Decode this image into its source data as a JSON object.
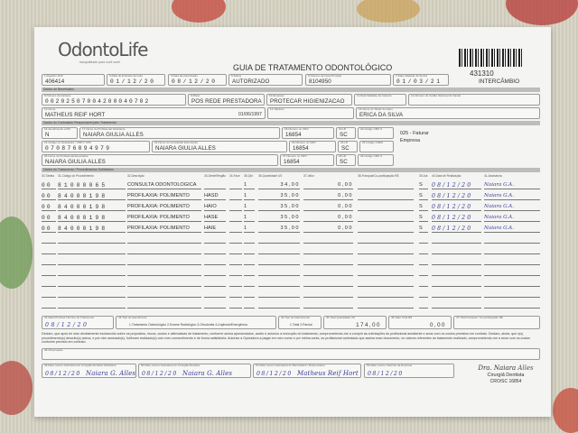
{
  "header": {
    "logo": "OdontoLife",
    "logo_tagline": "tranquilidade para você sorrir",
    "title": "GUIA DE TRATAMENTO ODONTOLÓGICO",
    "guide_number": "431310",
    "guide_type": "INTERCÂMBIO"
  },
  "fields": {
    "registro_ans": {
      "label": "1-Registro ANS",
      "value": "406414"
    },
    "data_emissao": {
      "label": "3-Data de Emissão da Guia",
      "value": "01/12/20"
    },
    "data_autorizacao": {
      "label": "4-Data da Autorização",
      "value": "08/12/20"
    },
    "status": {
      "label": "5-Status",
      "value": "AUTORIZADO"
    },
    "guia_principal": {
      "label": "6-Número da Guia Principal",
      "value": "8104950"
    },
    "validade_senha": {
      "label": "7-Data Validade da Senha",
      "value": "01/03/21"
    },
    "beneficiario_bar": "Dados do Beneficiário",
    "numero_carteira": {
      "label": "8-Número da Carteira",
      "value": "00202507004200040702"
    },
    "plano": {
      "label": "9-Plano",
      "value": "POS REDE PRESTADORA"
    },
    "empresa": {
      "label": "10-Empresa",
      "value": "PROTECAR HIGIENIZACAO"
    },
    "validade_carteira": {
      "label": "11-Data Validade da Carteira",
      "value": ""
    },
    "cns": {
      "label": "12-Número do Cartão Nacional de Saúde",
      "value": ""
    },
    "nome": {
      "label": "13-Nome",
      "value": "MATHEUS REIF HORT",
      "birth": "01/06/1997"
    },
    "telefone": {
      "label": "14-Telefone",
      "value": ""
    },
    "titular": {
      "label": "15-Nome do Titular do plano",
      "value": "ERICA DA SILVA"
    },
    "contratado_bar": "Dados do Contratado Responsável pelo Tratamento",
    "atendimento_rn": {
      "label": "16-Atendimento a RN",
      "value": "N"
    },
    "prof_solicitante": {
      "label": "17-Nome do Profissional Solicitante",
      "value": "NAIARA GIULIA ALLES"
    },
    "cro1": {
      "label": "18-Número no CRO",
      "value": "16854"
    },
    "uf1": {
      "label": "19-UF",
      "value": "SC"
    },
    "cbo1": {
      "label": "20-Código CBO S",
      "value": ""
    },
    "codigo_operadora": {
      "label": "21-Código na Operadora / CNPJ / CPF",
      "value": "070876894979"
    },
    "contratado_executante": {
      "label": "22-Nome do Contratado Executante",
      "value": "NAIARA GIULIA ALLES"
    },
    "cro2": {
      "label": "23-Número no CRO",
      "value": "16854"
    },
    "uf2": {
      "label": "24-UF",
      "value": "SC"
    },
    "cnes": {
      "label": "25-Código CNES",
      "value": ""
    },
    "faturar": "025 - Faturar Empresa",
    "prof_executante": {
      "label": "26-Nome do Profissional Executante",
      "value": "NAIARA GIULIA ALLES"
    },
    "cro3": {
      "label": "27-Número no CRO",
      "value": "16854"
    },
    "uf3": {
      "label": "28-UF",
      "value": "SC"
    },
    "cbo3": {
      "label": "29-Código CBO S",
      "value": ""
    }
  },
  "procedures": {
    "bar": "Dados do Tratamento / Procedimentos Solicitados",
    "columns": [
      "30-Tabela",
      "31-Código do Procedimento",
      "32-Descrição",
      "33-Dente/Região",
      "34-Face",
      "35-Qtd",
      "36-Quantidade US",
      "37-Valor",
      "38-Franquia/Co-participação R$",
      "39-Aut",
      "40-Data de Realização",
      "41-Assinatura"
    ],
    "rows": [
      {
        "tabela": "00",
        "codigo": "81000065",
        "descricao": "CONSULTA ODONTOLOGICA",
        "dente": "",
        "face": "",
        "qtd": "1",
        "us": "34,00",
        "valor": "0,00",
        "aut": "S",
        "data": "08/12/20",
        "assinatura": "Naiara G.A."
      },
      {
        "tabela": "00",
        "codigo": "84000198",
        "descricao": "PROFILAXIA: POLIMENTO",
        "dente": "HASD",
        "face": "",
        "qtd": "1",
        "us": "35,00",
        "valor": "0,00",
        "aut": "S",
        "data": "08/12/20",
        "assinatura": "Naiara G.A."
      },
      {
        "tabela": "00",
        "codigo": "84000198",
        "descricao": "PROFILAXIA: POLIMENTO",
        "dente": "HAIO",
        "face": "",
        "qtd": "1",
        "us": "35,00",
        "valor": "0,00",
        "aut": "S",
        "data": "08/12/20",
        "assinatura": "Naiara G.A."
      },
      {
        "tabela": "00",
        "codigo": "84000198",
        "descricao": "PROFILAXIA: POLIMENTO",
        "dente": "HASE",
        "face": "",
        "qtd": "1",
        "us": "35,00",
        "valor": "0,00",
        "aut": "S",
        "data": "08/12/20",
        "assinatura": "Naiara G.A."
      },
      {
        "tabela": "00",
        "codigo": "84000198",
        "descricao": "PROFILAXIA: POLIMENTO",
        "dente": "HAIE",
        "face": "",
        "qtd": "1",
        "us": "35,00",
        "valor": "0,00",
        "aut": "S",
        "data": "08/12/20",
        "assinatura": "Naiara G.A."
      }
    ]
  },
  "totals": {
    "data_termino": {
      "label": "42-Data Provável Término do Tratamento",
      "value": "08/12/20"
    },
    "tipo_atendimento": {
      "label": "43-Tipo de Atendimento",
      "value": "1-Tratamento Odontológico  2-Exame Radiológico  3-Ortodontia  4-Urgência/Emergência"
    },
    "tipo_faturamento": {
      "label": "44-Tipo de Faturamento",
      "value": "1-Total  2-Parcial"
    },
    "total_us": {
      "label": "45-Total Quantidade US",
      "value": "174,00"
    },
    "valor_total": {
      "label": "46-Valor Total R$",
      "value": "0,00"
    },
    "franquia": {
      "label": "47-Total Franquia / Co-participação R$",
      "value": ""
    }
  },
  "declaration": "Declaro, que após ter sido devidamente esclarecido sobre os propósitos, riscos, custos e alternativas de tratamento, conforme acima apresentados, aceito e autorizo a execução do tratamento, comprometendo-me a cumprir as orientações do profissional assistente e arcar com os custos previstos em contrato. Declaro, ainda, que o(s) procedimento(s) descrito(s) acima, e por mim assinado(s), foi/foram realizado(s) com meu consentimento e de forma satisfatória. Autorizo a Operadora a pagar em meu nome e por minha conta, ao profissional contratado que assina esse documento, os valores referentes ao tratamento realizado, comprometendo-me a arcar com os custos conforme previsto em contrato.",
  "observacao_label": "48-Observação",
  "signatures": [
    {
      "label": "49-Data, local e Assinatura do Cirurgião-Dentista Solicitante",
      "date": "08/12/20",
      "sign": "Naiara G. Alles"
    },
    {
      "label": "50-Data, local e Assinatura do Cirurgião-Dentista",
      "date": "08/12/20",
      "sign": "Naiara G. Alles"
    },
    {
      "label": "51-Data, local e Assinatura do Beneficiário / Responsável",
      "date": "08/12/20",
      "sign": "Matheus Reif Hort"
    },
    {
      "label": "52-Data, local e Carimbo da Empresa",
      "date": "08/12/20",
      "sign": ""
    }
  ],
  "stamp": {
    "name": "Dra. Naiara",
    "name2": "Alles",
    "title": "Cirurgiã Dentista",
    "cro": "CRO/SC 16854"
  }
}
